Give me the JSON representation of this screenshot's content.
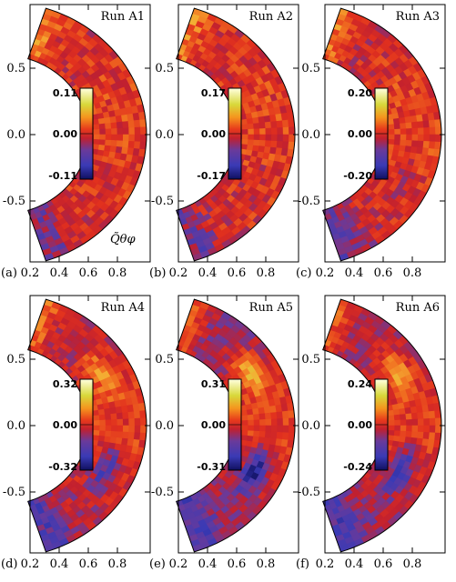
{
  "chart_data": {
    "type": "heatmap",
    "field_label": "Q̃θφ",
    "x_tick_labels": [
      "0.2",
      "0.4",
      "0.6",
      "0.8"
    ],
    "x_ticks": [
      0.2,
      0.4,
      0.6,
      0.8
    ],
    "y_tick_labels": [
      "0.5",
      "0.0",
      "-0.5"
    ],
    "y_ticks": [
      0.5,
      0.0,
      -0.5
    ],
    "xlim": [
      0.2,
      1.0
    ],
    "ylim": [
      -0.98,
      0.98
    ],
    "domain": {
      "r_inner": 0.6,
      "r_outer": 1.0,
      "colatitude_deg": [
        18,
        162
      ]
    },
    "colorscale": [
      "#1b1b6e",
      "#3a3ab5",
      "#6a3a9a",
      "#b0203a",
      "#e03020",
      "#f06a20",
      "#f7b33a",
      "#d8d83a",
      "#ffffcc"
    ],
    "panels": [
      {
        "id": "a",
        "letter": "(a)",
        "run": "Run A1",
        "cbar_max": "0.11",
        "cbar_zero": "0.00",
        "cbar_min": "-0.11",
        "amplitude": 0.25
      },
      {
        "id": "b",
        "letter": "(b)",
        "run": "Run A2",
        "cbar_max": "0.17",
        "cbar_zero": "0.00",
        "cbar_min": "-0.17",
        "amplitude": 0.25
      },
      {
        "id": "c",
        "letter": "(c)",
        "run": "Run A3",
        "cbar_max": "0.20",
        "cbar_zero": "0.00",
        "cbar_min": "-0.20",
        "amplitude": 0.35
      },
      {
        "id": "d",
        "letter": "(d)",
        "run": "Run A4",
        "cbar_max": "0.32",
        "cbar_zero": "0.00",
        "cbar_min": "-0.32",
        "amplitude": 0.6
      },
      {
        "id": "e",
        "letter": "(e)",
        "run": "Run A5",
        "cbar_max": "0.31",
        "cbar_zero": "0.00",
        "cbar_min": "-0.31",
        "amplitude": 0.85
      },
      {
        "id": "f",
        "letter": "(f)",
        "run": "Run A6",
        "cbar_max": "0.24",
        "cbar_zero": "0.00",
        "cbar_min": "-0.24",
        "amplitude": 0.75
      }
    ]
  }
}
